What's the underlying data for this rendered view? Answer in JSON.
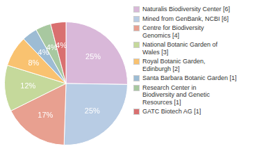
{
  "chart_data": {
    "type": "pie",
    "categories": [
      "Naturalis Biodiversity Center [6]",
      "Mined from GenBank, NCBI [6]",
      "Centre for Biodiversity\nGenomics [4]",
      "National Botanic Garden of\nWales [3]",
      "Royal Botanic Garden,\nEdinburgh [2]",
      "Santa Barbara Botanic Garden [1]",
      "Research Center in\nBiodiversity and Genetic\nResources [1]",
      "GATC Biotech AG [1]"
    ],
    "values": [
      25,
      25,
      17,
      12,
      8,
      4,
      4,
      4
    ],
    "value_labels": [
      "25%",
      "25%",
      "17%",
      "12%",
      "8%",
      "4%",
      "4%",
      "4%"
    ],
    "colors": [
      "#d9b8d9",
      "#b8cce4",
      "#e8a090",
      "#c5d99b",
      "#f9c270",
      "#9dbcd4",
      "#a8c8a0",
      "#d97070"
    ],
    "data_labels": true,
    "legend": "right"
  }
}
